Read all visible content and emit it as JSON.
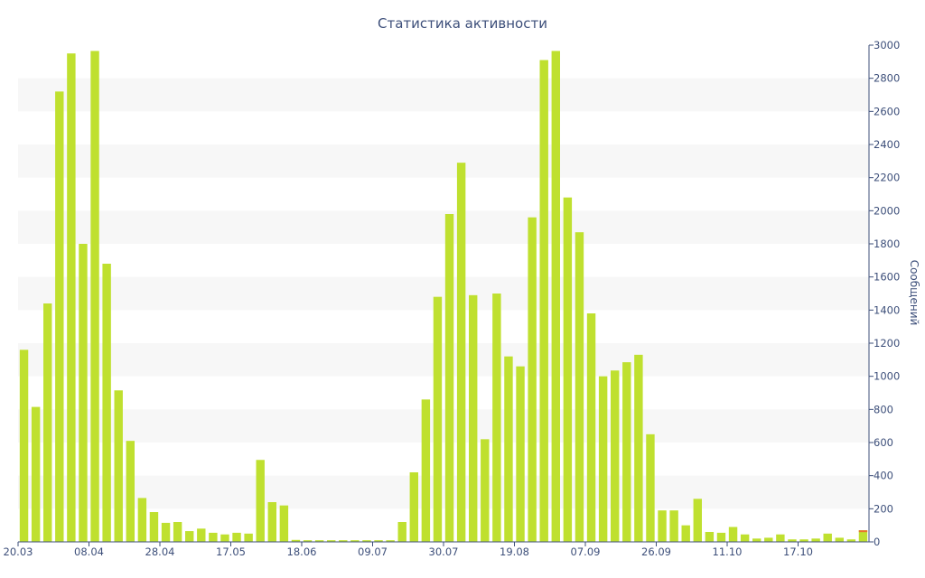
{
  "chart_data": {
    "type": "bar",
    "title": "Статистика активности",
    "xlabel": "",
    "ylabel": "Сообщений",
    "ylim": [
      0,
      3000
    ],
    "y_ticks": [
      "0",
      "200",
      "400",
      "600",
      "800",
      "1000",
      "1200",
      "1400",
      "1600",
      "1800",
      "2000",
      "2200",
      "2400",
      "2600",
      "2800",
      "3000"
    ],
    "x_tick_labels": [
      "20.03",
      "08.04",
      "28.04",
      "17.05",
      "18.06",
      "09.07",
      "30.07",
      "19.08",
      "07.09",
      "26.09",
      "11.10",
      "17.10"
    ],
    "y_axis_side": "right",
    "grid": "alternating horizontal bands",
    "colors": {
      "bar": "#bfe02f",
      "last_bar_top": "#e8742e",
      "band": "#f7f7f7",
      "axis": "#3d4f7a"
    },
    "values": [
      1160,
      815,
      1440,
      2720,
      2950,
      1800,
      2965,
      1680,
      915,
      610,
      265,
      180,
      115,
      120,
      65,
      80,
      55,
      45,
      55,
      50,
      495,
      240,
      220,
      12,
      10,
      10,
      10,
      10,
      10,
      10,
      10,
      10,
      120,
      420,
      860,
      1480,
      1980,
      2290,
      1490,
      620,
      1500,
      1120,
      1060,
      1960,
      2910,
      2965,
      2080,
      1870,
      1380,
      1000,
      1035,
      1085,
      1130,
      650,
      190,
      190,
      100,
      260,
      60,
      55,
      90,
      45,
      20,
      25,
      45,
      15,
      15,
      20,
      50,
      25,
      15,
      70
    ]
  }
}
